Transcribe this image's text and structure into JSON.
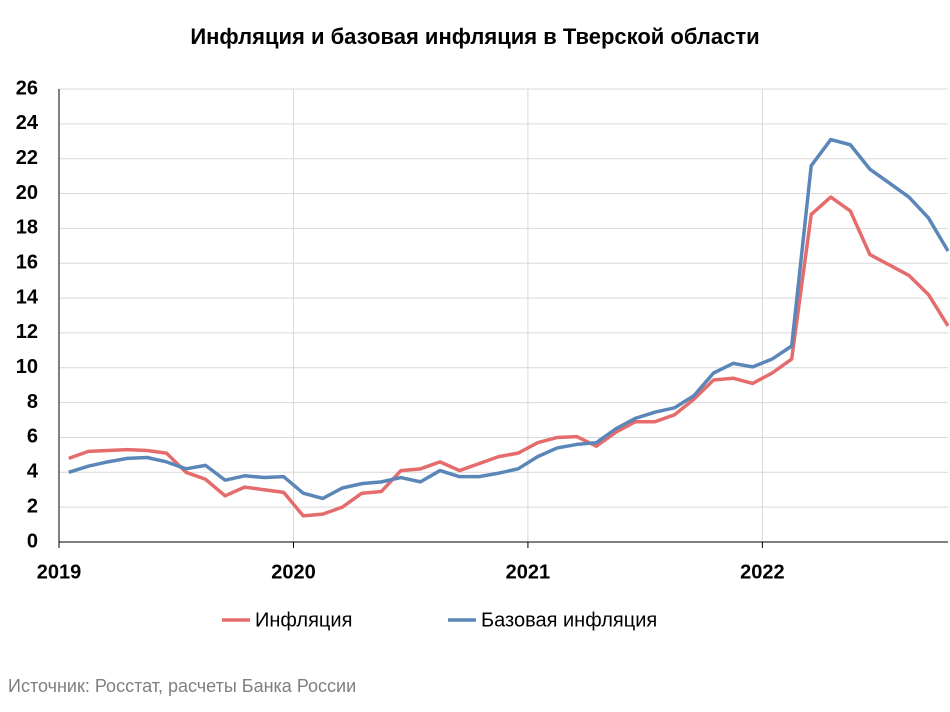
{
  "chart_data": {
    "type": "line",
    "title": "Инфляция и базовая инфляция в Тверской области",
    "source": "Источник: Росстат, расчеты Банка России",
    "categories": [
      "2019",
      null,
      null,
      null,
      null,
      null,
      null,
      null,
      null,
      null,
      null,
      null,
      "2020",
      null,
      null,
      null,
      null,
      null,
      null,
      null,
      null,
      null,
      null,
      null,
      "2021",
      null,
      null,
      null,
      null,
      null,
      null,
      null,
      null,
      null,
      null,
      null,
      "2022",
      null,
      null,
      null,
      null,
      null,
      null,
      null,
      null,
      null
    ],
    "series": [
      {
        "name": "Инфляция",
        "color": "#e46c6c",
        "values": [
          4.8,
          5.2,
          5.25,
          5.3,
          5.25,
          5.1,
          4.0,
          3.6,
          2.65,
          3.15,
          3.0,
          2.85,
          1.5,
          1.6,
          2.0,
          2.8,
          2.9,
          4.1,
          4.2,
          4.6,
          4.1,
          4.5,
          4.9,
          5.1,
          5.7,
          6.0,
          6.05,
          5.5,
          6.3,
          6.9,
          6.9,
          7.3,
          8.2,
          9.3,
          9.4,
          9.1,
          9.7,
          10.5,
          18.8,
          19.8,
          19.0,
          16.5,
          15.9,
          15.3,
          14.2,
          12.4
        ]
      },
      {
        "name": "Базовая инфляция",
        "color": "#5b87b8",
        "values": [
          4.0,
          4.35,
          4.6,
          4.8,
          4.85,
          4.6,
          4.2,
          4.4,
          3.55,
          3.8,
          3.7,
          3.75,
          2.8,
          2.5,
          3.1,
          3.35,
          3.45,
          3.7,
          3.45,
          4.1,
          3.75,
          3.75,
          3.95,
          4.2,
          4.9,
          5.4,
          5.6,
          5.7,
          6.5,
          7.1,
          7.45,
          7.7,
          8.4,
          9.7,
          10.25,
          10.05,
          10.5,
          11.25,
          21.6,
          23.1,
          22.8,
          21.4,
          20.6,
          19.8,
          18.6,
          16.7
        ]
      }
    ],
    "ylim": [
      0,
      26
    ],
    "yticks": [
      0,
      2,
      4,
      6,
      8,
      10,
      12,
      14,
      16,
      18,
      20,
      22,
      24,
      26
    ],
    "grid": true,
    "legend": "bottom"
  }
}
